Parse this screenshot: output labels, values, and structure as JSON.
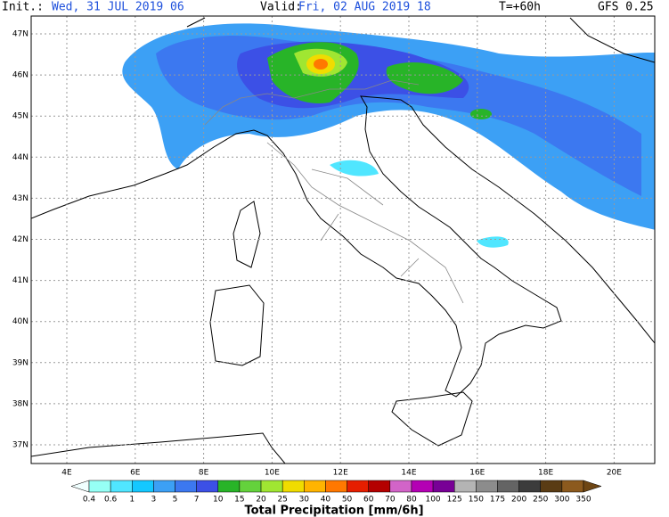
{
  "header": {
    "init_label": "Init.:",
    "init_time": "Wed, 31 JUL 2019  06",
    "valid_label": "Valid:",
    "valid_time": "Fri, 02 AUG 2019  18",
    "lead": "T=+60h",
    "model": "GFS 0.25"
  },
  "map": {
    "lat_labels": [
      "47N",
      "46N",
      "45N",
      "44N",
      "43N",
      "42N",
      "41N",
      "40N",
      "39N",
      "38N",
      "37N"
    ],
    "lon_labels": [
      "4E",
      "6E",
      "8E",
      "10E",
      "12E",
      "14E",
      "16E",
      "18E",
      "20E"
    ]
  },
  "colorbar": {
    "levels": [
      0.4,
      0.6,
      1,
      3,
      5,
      7,
      10,
      15,
      20,
      25,
      30,
      40,
      50,
      60,
      70,
      80,
      100,
      125,
      150,
      175,
      200,
      250,
      300,
      350
    ],
    "colors": [
      "#f0ffff",
      "#96fff5",
      "#50e6ff",
      "#14c8ff",
      "#3ca0f5",
      "#3c78f0",
      "#3c50e6",
      "#28b428",
      "#64d23c",
      "#a0e632",
      "#f0dc00",
      "#ffb400",
      "#ff7800",
      "#e61e00",
      "#b40000",
      "#d264c8",
      "#b400b4",
      "#780096",
      "#b4b4b4",
      "#8c8c8c",
      "#646464",
      "#3c3c3c",
      "#5a3c14",
      "#8c5a1e",
      "#6e4614"
    ],
    "title": "Total Precipitation [mm/6h]"
  }
}
